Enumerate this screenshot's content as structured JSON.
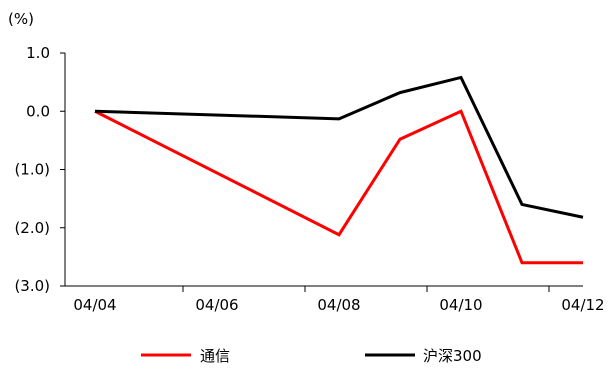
{
  "chart_data": {
    "type": "line",
    "y_unit_label": "(%)",
    "x": [
      "04/04",
      "04/06",
      "04/08",
      "04/10",
      "04/12"
    ],
    "x_tick_labels": [
      "04/04",
      "04/06",
      "04/08",
      "04/10",
      "04/12"
    ],
    "x_range": [
      0,
      8
    ],
    "y_ticks": [
      1.0,
      0.0,
      -1.0,
      -2.0,
      -3.0
    ],
    "y_tick_labels": [
      "1.0",
      "0.0",
      "(1.0)",
      "(2.0)",
      "(3.0)"
    ],
    "ylim": [
      -3.0,
      1.0
    ],
    "grid": false,
    "legend_position": "bottom",
    "series": [
      {
        "name": "通信",
        "color": "#ff0000",
        "points": [
          {
            "x": 0,
            "y": 0.0
          },
          {
            "x": 4,
            "y": -2.12
          },
          {
            "x": 5,
            "y": -0.48
          },
          {
            "x": 6,
            "y": 0.0
          },
          {
            "x": 7,
            "y": -2.6
          },
          {
            "x": 8,
            "y": -2.6
          }
        ]
      },
      {
        "name": "沪深300",
        "color": "#000000",
        "points": [
          {
            "x": 0,
            "y": 0.0
          },
          {
            "x": 4,
            "y": -0.13
          },
          {
            "x": 5,
            "y": 0.32
          },
          {
            "x": 6,
            "y": 0.58
          },
          {
            "x": 7,
            "y": -1.6
          },
          {
            "x": 8,
            "y": -1.82
          }
        ]
      }
    ]
  }
}
